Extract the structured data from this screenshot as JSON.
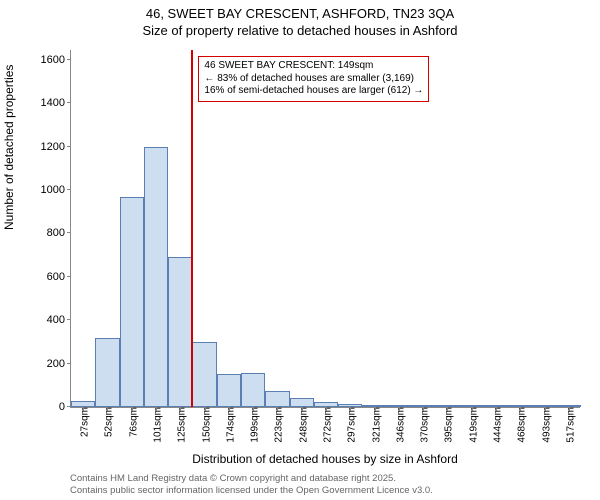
{
  "title_line1": "46, SWEET BAY CRESCENT, ASHFORD, TN23 3QA",
  "title_line2": "Size of property relative to detached houses in Ashford",
  "y_axis_label": "Number of detached properties",
  "x_axis_label": "Distribution of detached houses by size in Ashford",
  "footer_line1": "Contains HM Land Registry data © Crown copyright and database right 2025.",
  "footer_line2": "Contains public sector information licensed under the Open Government Licence v3.0.",
  "chart": {
    "type": "histogram",
    "background_color": "#ffffff",
    "bar_fill": "#cedef1",
    "bar_stroke": "#5b7fb3",
    "axis_color": "#888888",
    "ref_line_color": "#d40000",
    "annotation_border": "#d40000",
    "ylim": [
      0,
      1650
    ],
    "y_ticks": [
      0,
      200,
      400,
      600,
      800,
      1000,
      1200,
      1400,
      1600
    ],
    "x_tick_labels": [
      "27sqm",
      "52sqm",
      "76sqm",
      "101sqm",
      "125sqm",
      "150sqm",
      "174sqm",
      "199sqm",
      "223sqm",
      "248sqm",
      "272sqm",
      "297sqm",
      "321sqm",
      "346sqm",
      "370sqm",
      "395sqm",
      "419sqm",
      "444sqm",
      "468sqm",
      "493sqm",
      "517sqm"
    ],
    "bars": [
      30,
      320,
      970,
      1200,
      690,
      300,
      150,
      155,
      75,
      40,
      25,
      12,
      10,
      8,
      8,
      6,
      5,
      4,
      4,
      3,
      3
    ],
    "ref_line_bin_index": 5,
    "annotation": {
      "line1": "46 SWEET BAY CRESCENT: 149sqm",
      "line2": "← 83% of detached houses are smaller (3,169)",
      "line3": "16% of semi-detached houses are larger (612) →"
    }
  }
}
